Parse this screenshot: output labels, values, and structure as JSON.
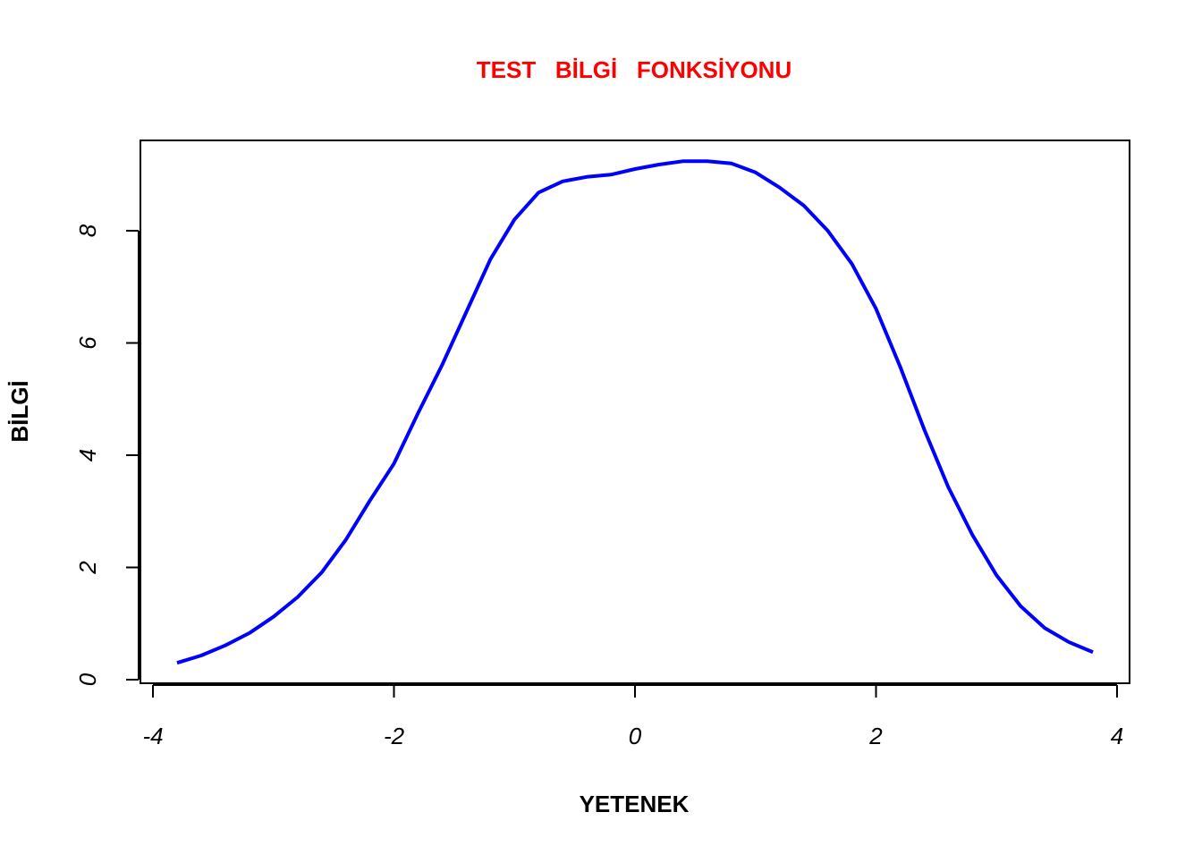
{
  "chart_data": {
    "type": "line",
    "title": "TEST   BİLGİ   FONKSİYONU",
    "xlabel": "YETENEK",
    "ylabel": "BİLGİ",
    "x": [
      -3.8,
      -3.6,
      -3.4,
      -3.2,
      -3.0,
      -2.8,
      -2.6,
      -2.4,
      -2.2,
      -2.0,
      -1.8,
      -1.6,
      -1.4,
      -1.2,
      -1.0,
      -0.8,
      -0.6,
      -0.4,
      -0.2,
      0,
      0.2,
      0.4,
      0.6,
      0.8,
      1.0,
      1.2,
      1.4,
      1.6,
      1.8,
      2.0,
      2.2,
      2.4,
      2.6,
      2.8,
      3.0,
      3.2,
      3.4,
      3.6,
      3.8
    ],
    "series": [
      {
        "name": "BİLGİ",
        "color": "#0000ff",
        "values": [
          0.3,
          0.43,
          0.61,
          0.83,
          1.12,
          1.47,
          1.91,
          2.49,
          3.19,
          3.85,
          4.75,
          5.61,
          6.55,
          7.49,
          8.2,
          8.68,
          8.88,
          8.96,
          9.0,
          9.1,
          9.18,
          9.24,
          9.24,
          9.2,
          9.04,
          8.77,
          8.45,
          8.0,
          7.41,
          6.61,
          5.58,
          4.46,
          3.43,
          2.58,
          1.86,
          1.31,
          0.92,
          0.67,
          0.49
        ]
      }
    ],
    "xlim": [
      -4.104,
      4.104
    ],
    "ylim": [
      -0.064,
      9.61
    ],
    "xticks": [
      -4,
      -2,
      0,
      2,
      4
    ],
    "yticks": [
      0,
      2,
      4,
      6,
      8
    ]
  }
}
